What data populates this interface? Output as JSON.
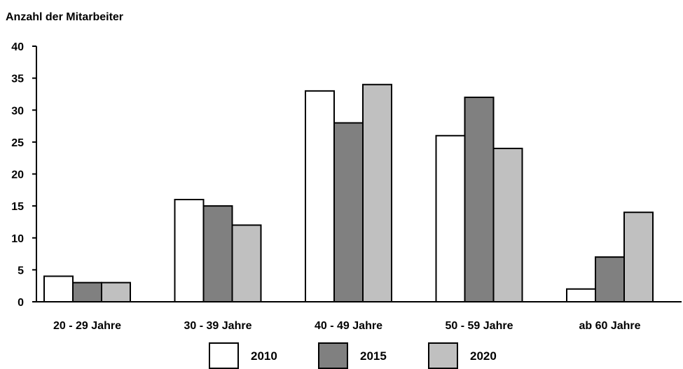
{
  "chart_data": {
    "type": "bar",
    "title": "",
    "ylabel": "Anzahl der Mitarbeiter",
    "xlabel": "",
    "ylim": [
      0,
      40
    ],
    "yticks": [
      0,
      5,
      10,
      15,
      20,
      25,
      30,
      35,
      40
    ],
    "grid": false,
    "legend_position": "bottom",
    "categories": [
      "20 - 29 Jahre",
      "30 - 39 Jahre",
      "40 - 49 Jahre",
      "50 - 59 Jahre",
      "ab 60 Jahre"
    ],
    "series": [
      {
        "name": "2010",
        "color": "#ffffff",
        "values": [
          4,
          16,
          33,
          26,
          2
        ]
      },
      {
        "name": "2015",
        "color": "#808080",
        "values": [
          3,
          15,
          28,
          32,
          7
        ]
      },
      {
        "name": "2020",
        "color": "#c0c0c0",
        "values": [
          3,
          12,
          34,
          24,
          14
        ]
      }
    ]
  }
}
